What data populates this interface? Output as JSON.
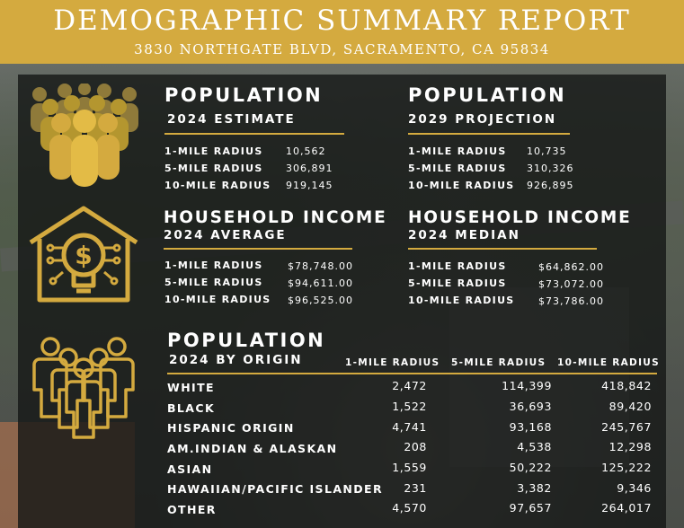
{
  "header": {
    "title": "DEMOGRAPHIC SUMMARY REPORT",
    "address": "3830 NORTHGATE BLVD, SACRAMENTO, CA 95834"
  },
  "colors": {
    "gold": "#d4aa3f",
    "panel": "#141615"
  },
  "icons": [
    "crowd-icon",
    "house-lightbulb-icon",
    "group-people-icon"
  ],
  "pop2024": {
    "title": "POPULATION",
    "subtitle": "2024 ESTIMATE",
    "rows": [
      {
        "label": "1-MILE RADIUS",
        "value": "10,562"
      },
      {
        "label": "5-MILE RADIUS",
        "value": "306,891"
      },
      {
        "label": "10-MILE RADIUS",
        "value": "919,145"
      }
    ]
  },
  "pop2029": {
    "title": "POPULATION",
    "subtitle": "2029 PROJECTION",
    "rows": [
      {
        "label": "1-MILE RADIUS",
        "value": "10,735"
      },
      {
        "label": "5-MILE RADIUS",
        "value": "310,326"
      },
      {
        "label": "10-MILE RADIUS",
        "value": "926,895"
      }
    ]
  },
  "hhAvg": {
    "title": "HOUSEHOLD INCOME",
    "subtitle": "2024 AVERAGE",
    "rows": [
      {
        "label": "1-MILE RADIUS",
        "value": "$78,748.00"
      },
      {
        "label": "5-MILE RADIUS",
        "value": "$94,611.00"
      },
      {
        "label": "10-MILE RADIUS",
        "value": "$96,525.00"
      }
    ]
  },
  "hhMed": {
    "title": "HOUSEHOLD INCOME",
    "subtitle": "2024 MEDIAN",
    "rows": [
      {
        "label": "1-MILE RADIUS",
        "value": "$64,862.00"
      },
      {
        "label": "5-MILE RADIUS",
        "value": "$73,072.00"
      },
      {
        "label": "10-MILE RADIUS",
        "value": "$73,786.00"
      }
    ]
  },
  "origin": {
    "title": "POPULATION",
    "subtitle": "2024 BY ORIGIN",
    "columns": [
      "1-MILE RADIUS",
      "5-MILE RADIUS",
      "10-MILE RADIUS"
    ],
    "rows": [
      {
        "label": "WHITE",
        "values": [
          "2,472",
          "114,399",
          "418,842"
        ]
      },
      {
        "label": "BLACK",
        "values": [
          "1,522",
          "36,693",
          "89,420"
        ]
      },
      {
        "label": "HISPANIC ORIGIN",
        "values": [
          "4,741",
          "93,168",
          "245,767"
        ]
      },
      {
        "label": "AM.INDIAN & ALASKAN",
        "values": [
          "208",
          "4,538",
          "12,298"
        ]
      },
      {
        "label": "ASIAN",
        "values": [
          "1,559",
          "50,222",
          "125,222"
        ]
      },
      {
        "label": "HAWAIIAN/PACIFIC ISLANDER",
        "values": [
          "231",
          "3,382",
          "9,346"
        ]
      },
      {
        "label": "OTHER",
        "values": [
          "4,570",
          "97,657",
          "264,017"
        ]
      }
    ]
  }
}
